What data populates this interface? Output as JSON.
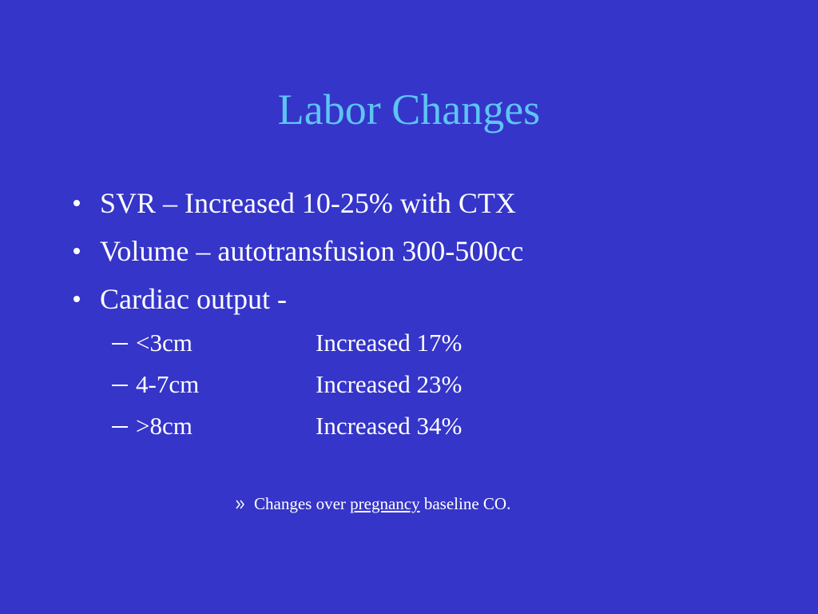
{
  "title": "Labor Changes",
  "bullets": [
    "SVR – Increased 10-25% with CTX",
    "Volume – autotransfusion 300-500cc",
    "Cardiac output -"
  ],
  "sub_bullets": [
    [
      "<3cm",
      "Increased 17%"
    ],
    [
      "4-7cm",
      "Increased 23%"
    ],
    [
      ">8cm",
      "Increased 34%"
    ]
  ],
  "note": {
    "before": "Changes over",
    "link": "pregnancy",
    "after": "baseline CO."
  }
}
